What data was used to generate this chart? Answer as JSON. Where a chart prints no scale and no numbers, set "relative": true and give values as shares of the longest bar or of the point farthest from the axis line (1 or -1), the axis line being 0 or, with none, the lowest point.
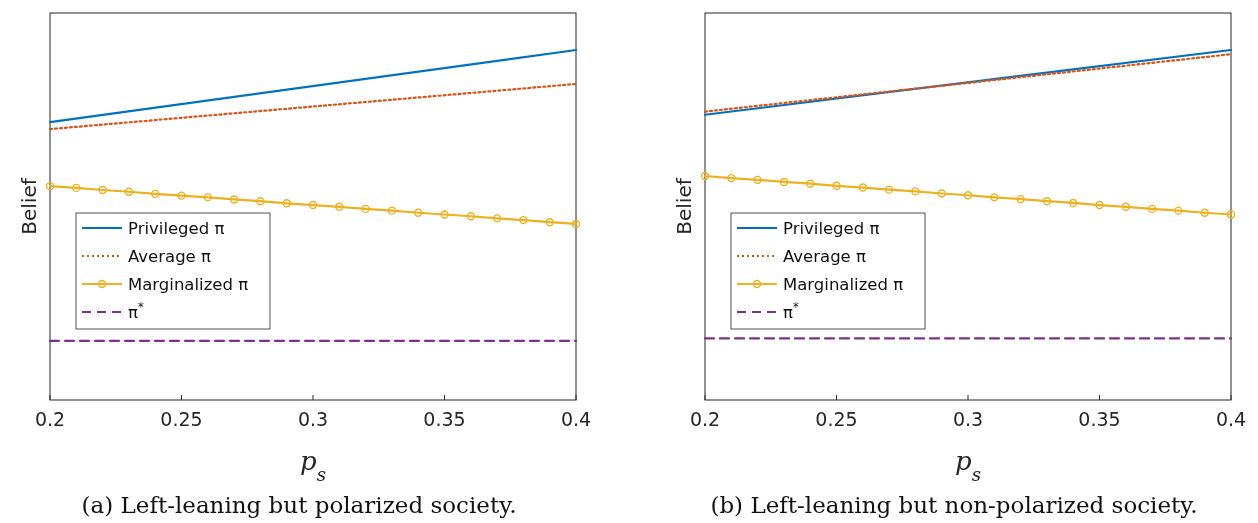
{
  "chart_data": [
    {
      "type": "line",
      "title": "(a) Left-leaning but polarized society.",
      "xlabel": "p$_{s}$",
      "ylabel": "Belief",
      "relative": true,
      "xlim": [
        0.2,
        0.4
      ],
      "xticks": [
        0.2,
        0.25,
        0.3,
        0.35,
        0.4
      ],
      "legend": "left",
      "grid": false,
      "series": [
        {
          "name": "Privileged π",
          "color": "#0072bd",
          "x": [
            0.2,
            0.4
          ],
          "values": [
            0.794,
            1
          ],
          "line_style": "solid",
          "marker": "none"
        },
        {
          "name": "Average π",
          "color": "#d95319",
          "x": [
            0.2,
            0.4
          ],
          "values": [
            0.774,
            0.903
          ],
          "line_style": "dotted",
          "marker": "none"
        },
        {
          "name": "Marginalized π",
          "color": "#edb120",
          "x": [
            0.2,
            0.21,
            0.22,
            0.23,
            0.24,
            0.25,
            0.26,
            0.27,
            0.28,
            0.29,
            0.3,
            0.31,
            0.32,
            0.33,
            0.34,
            0.35,
            0.36,
            0.37,
            0.38,
            0.39,
            0.4
          ],
          "values": [
            0.611,
            0.606,
            0.6,
            0.595,
            0.589,
            0.584,
            0.579,
            0.573,
            0.568,
            0.562,
            0.557,
            0.552,
            0.546,
            0.541,
            0.535,
            0.53,
            0.525,
            0.519,
            0.514,
            0.508,
            0.503
          ],
          "line_style": "solid",
          "marker": "circle"
        },
        {
          "name": "π$^{*}$",
          "color": "#7e2f8e",
          "x": [
            0.2,
            0.4
          ],
          "values": [
            0.169,
            0.169
          ],
          "line_style": "dashed",
          "marker": "none"
        }
      ]
    },
    {
      "type": "line",
      "title": "(b) Left-leaning but non-polarized society.",
      "xlabel": "p$_{s}$",
      "ylabel": "Belief",
      "relative": true,
      "xlim": [
        0.2,
        0.4
      ],
      "xticks": [
        0.2,
        0.25,
        0.3,
        0.35,
        0.4
      ],
      "legend": "left",
      "grid": false,
      "series": [
        {
          "name": "Privileged π",
          "color": "#0072bd",
          "x": [
            0.2,
            0.4
          ],
          "values": [
            0.815,
            1
          ],
          "line_style": "solid",
          "marker": "none"
        },
        {
          "name": "Average π",
          "color": "#d95319",
          "x": [
            0.2,
            0.4
          ],
          "values": [
            0.824,
            0.988
          ],
          "line_style": "dotted",
          "marker": "none"
        },
        {
          "name": "Marginalized π",
          "color": "#edb120",
          "x": [
            0.2,
            0.21,
            0.22,
            0.23,
            0.24,
            0.25,
            0.26,
            0.27,
            0.28,
            0.29,
            0.3,
            0.31,
            0.32,
            0.33,
            0.34,
            0.35,
            0.36,
            0.37,
            0.38,
            0.39,
            0.4
          ],
          "values": [
            0.64,
            0.634,
            0.629,
            0.623,
            0.618,
            0.612,
            0.607,
            0.601,
            0.596,
            0.59,
            0.585,
            0.579,
            0.574,
            0.568,
            0.563,
            0.557,
            0.552,
            0.546,
            0.541,
            0.535,
            0.53
          ],
          "line_style": "solid",
          "marker": "circle"
        },
        {
          "name": "π$^{*}$",
          "color": "#7e2f8e",
          "x": [
            0.2,
            0.4
          ],
          "values": [
            0.176,
            0.176
          ],
          "line_style": "dashed",
          "marker": "none"
        }
      ]
    }
  ]
}
